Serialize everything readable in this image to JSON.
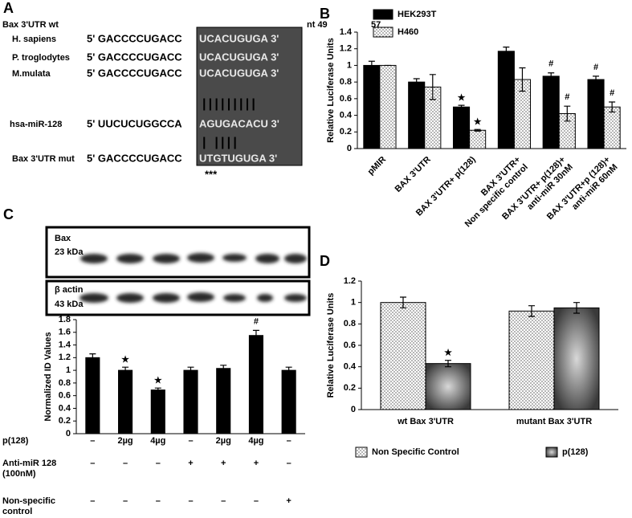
{
  "sequence_panel": {
    "panel": "A",
    "title": "Bax 3'UTR wt",
    "positions": [
      "nt 49",
      "57"
    ],
    "rows": [
      {
        "name": "H. sapiens",
        "seq": "5' GACCCCUGACC",
        "site": "UCACUGUGA 3'"
      },
      {
        "name": "P. troglodytes",
        "seq": "5' GACCCCUGACC",
        "site": "UCACUGUGA 3'"
      },
      {
        "name": "M.mulata",
        "seq": "5' GACCCCUGACC",
        "site": "UCACUGUGA 3'"
      },
      {
        "name": "hsa-miR-128",
        "seq": "5' UUCUCUGGCCA",
        "site": "AGUGACACU 3'"
      },
      {
        "name": "Bax 3'UTR mut",
        "seq": "5' GACCCCUGACC",
        "site": "UTGTUGUGA 3'"
      }
    ],
    "pairing": [
      "|||||||||",
      "|   ||||"
    ],
    "mutations": "***"
  },
  "chart_data": [
    {
      "type": "bar",
      "panel": "B",
      "ylabel": "Relative Luciferase Units",
      "categories": [
        "pMIR",
        "BAX 3'UTR",
        "BAX 3'UTR+ p(128)",
        "BAX 3'UTR+\nNon specific control",
        "BAX 3'UTR+ p(128)+\nanti-miR 30nM",
        "BAX 3'UTR+p (128)+\nanti-miR 60nM"
      ],
      "ylim": [
        0,
        1.4
      ],
      "yticks": [
        0,
        0.2,
        0.4,
        0.6,
        0.8,
        1,
        1.2,
        1.4
      ],
      "legend": "top-left",
      "series": [
        {
          "name": "HEK293T",
          "color": "#000000",
          "pattern": "solid",
          "values": [
            1.0,
            0.8,
            0.5,
            1.17,
            0.87,
            0.83
          ],
          "errors": [
            0.05,
            0.04,
            0.02,
            0.05,
            0.04,
            0.04
          ],
          "annotations": [
            null,
            null,
            "★",
            null,
            "#",
            "#"
          ]
        },
        {
          "name": "H460",
          "color": "#000000",
          "pattern": "dots",
          "values": [
            1.0,
            0.74,
            0.22,
            0.83,
            0.42,
            0.5
          ],
          "errors": [
            0,
            0.15,
            0.01,
            0.14,
            0.09,
            0.06
          ],
          "annotations": [
            null,
            null,
            "★",
            null,
            "#",
            "#"
          ]
        }
      ]
    },
    {
      "type": "bar",
      "panel": "C",
      "ylabel": "Normalized ID Values",
      "ylim": [
        0,
        1.8
      ],
      "yticks": [
        0,
        0.2,
        0.4,
        0.6,
        0.8,
        1,
        1.2,
        1.4,
        1.6,
        1.8
      ],
      "blots": [
        {
          "protein": "Bax",
          "size": "23 kDa"
        },
        {
          "protein": "β actin",
          "size": "43 kDa"
        }
      ],
      "series": [
        {
          "color": "#000000",
          "pattern": "solid",
          "values": [
            1.2,
            1.0,
            0.69,
            1.0,
            1.03,
            1.55,
            1.0
          ],
          "errors": [
            0.06,
            0.05,
            0.03,
            0.05,
            0.05,
            0.08,
            0.05
          ],
          "annotations": [
            null,
            "★",
            "★",
            null,
            null,
            "#",
            null
          ]
        }
      ],
      "conditions": [
        {
          "label": "p(128)",
          "cells": [
            "–",
            "2µg",
            "4µg",
            "–",
            "2µg",
            "4µg",
            "–"
          ]
        },
        {
          "label": "Anti-miR 128\n(100nM)",
          "cells": [
            "–",
            "–",
            "–",
            "+",
            "+",
            "+",
            "–"
          ]
        },
        {
          "label": "Non-specific\ncontrol",
          "cells": [
            "–",
            "–",
            "–",
            "–",
            "–",
            "–",
            "+"
          ]
        }
      ]
    },
    {
      "type": "bar",
      "panel": "D",
      "ylabel": "Relative Luciferase Units",
      "categories": [
        "wt Bax 3'UTR",
        "mutant Bax 3'UTR"
      ],
      "ylim": [
        0,
        1.2
      ],
      "yticks": [
        0,
        0.2,
        0.4,
        0.6,
        0.8,
        1,
        1.2
      ],
      "legend": "bottom",
      "series": [
        {
          "name": "Non Specific Control",
          "color": "#000000",
          "pattern": "dots",
          "values": [
            1.0,
            0.92
          ],
          "errors": [
            0.05,
            0.05
          ],
          "annotations": [
            null,
            null
          ]
        },
        {
          "name": "p(128)",
          "color": "#3a3a3a",
          "pattern": "radial",
          "values": [
            0.43,
            0.95
          ],
          "errors": [
            0.03,
            0.05
          ],
          "annotations": [
            "★",
            null
          ]
        }
      ]
    }
  ]
}
